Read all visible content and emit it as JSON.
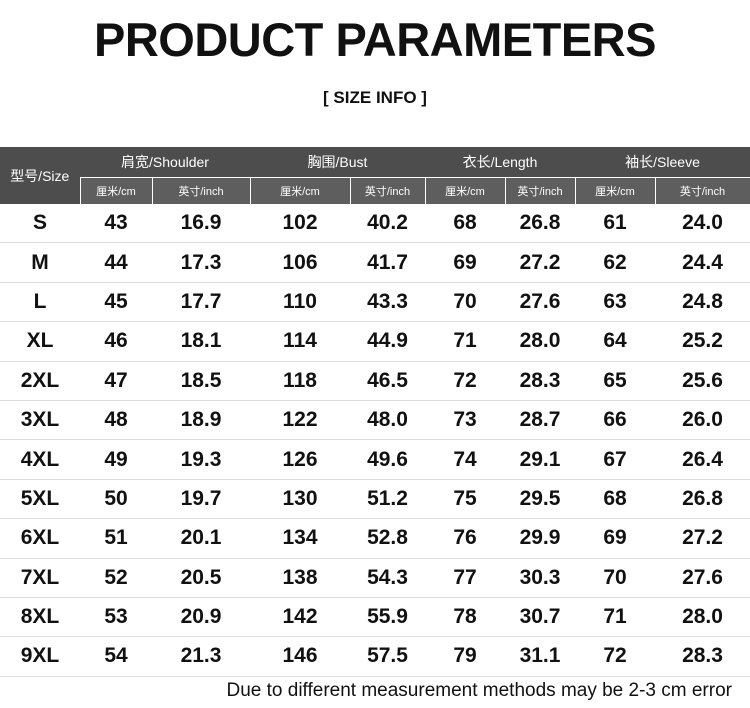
{
  "header": {
    "title": "PRODUCT PARAMETERS",
    "subtitle": "[ SIZE INFO ]"
  },
  "table": {
    "size_header": "型号/Size",
    "groups": [
      "肩宽/Shoulder",
      "胸围/Bust",
      "衣长/Length",
      "袖长/Sleeve"
    ],
    "units": [
      "厘米/cm",
      "英寸/inch",
      "厘米/cm",
      "英寸/inch",
      "厘米/cm",
      "英寸/inch",
      "厘米/cm",
      "英寸/inch"
    ],
    "rows": [
      [
        "S",
        "43",
        "16.9",
        "102",
        "40.2",
        "68",
        "26.8",
        "61",
        "24.0"
      ],
      [
        "M",
        "44",
        "17.3",
        "106",
        "41.7",
        "69",
        "27.2",
        "62",
        "24.4"
      ],
      [
        "L",
        "45",
        "17.7",
        "110",
        "43.3",
        "70",
        "27.6",
        "63",
        "24.8"
      ],
      [
        "XL",
        "46",
        "18.1",
        "114",
        "44.9",
        "71",
        "28.0",
        "64",
        "25.2"
      ],
      [
        "2XL",
        "47",
        "18.5",
        "118",
        "46.5",
        "72",
        "28.3",
        "65",
        "25.6"
      ],
      [
        "3XL",
        "48",
        "18.9",
        "122",
        "48.0",
        "73",
        "28.7",
        "66",
        "26.0"
      ],
      [
        "4XL",
        "49",
        "19.3",
        "126",
        "49.6",
        "74",
        "29.1",
        "67",
        "26.4"
      ],
      [
        "5XL",
        "50",
        "19.7",
        "130",
        "51.2",
        "75",
        "29.5",
        "68",
        "26.8"
      ],
      [
        "6XL",
        "51",
        "20.1",
        "134",
        "52.8",
        "76",
        "29.9",
        "69",
        "27.2"
      ],
      [
        "7XL",
        "52",
        "20.5",
        "138",
        "54.3",
        "77",
        "30.3",
        "70",
        "27.6"
      ],
      [
        "8XL",
        "53",
        "20.9",
        "142",
        "55.9",
        "78",
        "30.7",
        "71",
        "28.0"
      ],
      [
        "9XL",
        "54",
        "21.3",
        "146",
        "57.5",
        "79",
        "31.1",
        "72",
        "28.3"
      ]
    ]
  },
  "footer": {
    "note": "Due to different measurement methods may be 2-3 cm error"
  }
}
